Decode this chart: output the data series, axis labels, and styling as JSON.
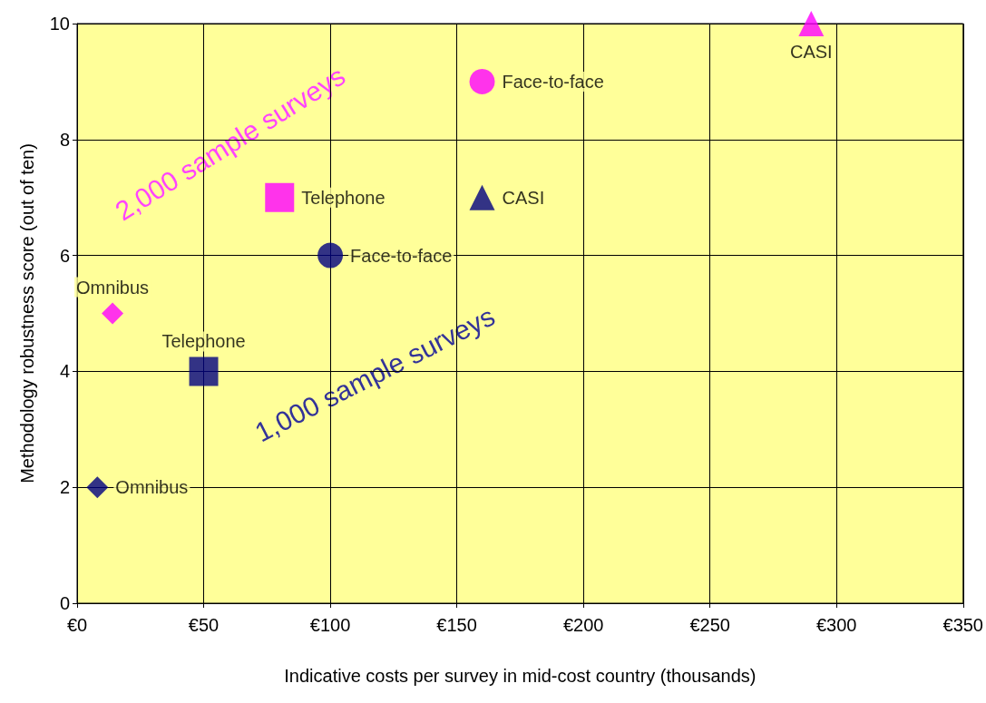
{
  "chart_data": {
    "type": "scatter",
    "xlabel": "Indicative costs per survey in mid-cost country (thousands)",
    "ylabel": "Methodology robustness score (out of ten)",
    "annotations": [
      "2,000 sample surveys",
      "1,000 sample surveys"
    ],
    "series": [
      {
        "name": "Omnibus",
        "color": "#000080",
        "marker": "diamond",
        "x": [
          8
        ],
        "values": [
          2
        ]
      },
      {
        "name": "Telephone",
        "color": "#000080",
        "marker": "square",
        "x": [
          50
        ],
        "values": [
          4
        ]
      },
      {
        "name": "Face-to-face",
        "color": "#000080",
        "marker": "circle",
        "x": [
          100
        ],
        "values": [
          6
        ]
      },
      {
        "name": "CASI",
        "color": "#000080",
        "marker": "triangle",
        "x": [
          160
        ],
        "values": [
          7
        ]
      },
      {
        "name": "Omnibus",
        "color": "#ff00ff",
        "marker": "diamond",
        "x": [
          14
        ],
        "values": [
          5
        ]
      },
      {
        "name": "Telephone",
        "color": "#ff00ff",
        "marker": "square",
        "x": [
          80
        ],
        "values": [
          7
        ]
      },
      {
        "name": "Face-to-face",
        "color": "#ff00ff",
        "marker": "circle",
        "x": [
          160
        ],
        "values": [
          9
        ]
      },
      {
        "name": "CASI",
        "color": "#ff00ff",
        "marker": "triangle",
        "x": [
          290
        ],
        "values": [
          10
        ]
      }
    ],
    "xlim": [
      0,
      350
    ],
    "xticks": [
      {
        "value": 0,
        "label": "€0"
      },
      {
        "value": 50,
        "label": "€50"
      },
      {
        "value": 100,
        "label": "€100"
      },
      {
        "value": 150,
        "label": "€150"
      },
      {
        "value": 200,
        "label": "€200"
      },
      {
        "value": 250,
        "label": "€250"
      },
      {
        "value": 300,
        "label": "€300"
      },
      {
        "value": 350,
        "label": "€350"
      }
    ],
    "ylim": [
      0,
      10
    ],
    "yticks": [
      0,
      2,
      4,
      6,
      8,
      10
    ],
    "grid": true,
    "legend": false
  }
}
